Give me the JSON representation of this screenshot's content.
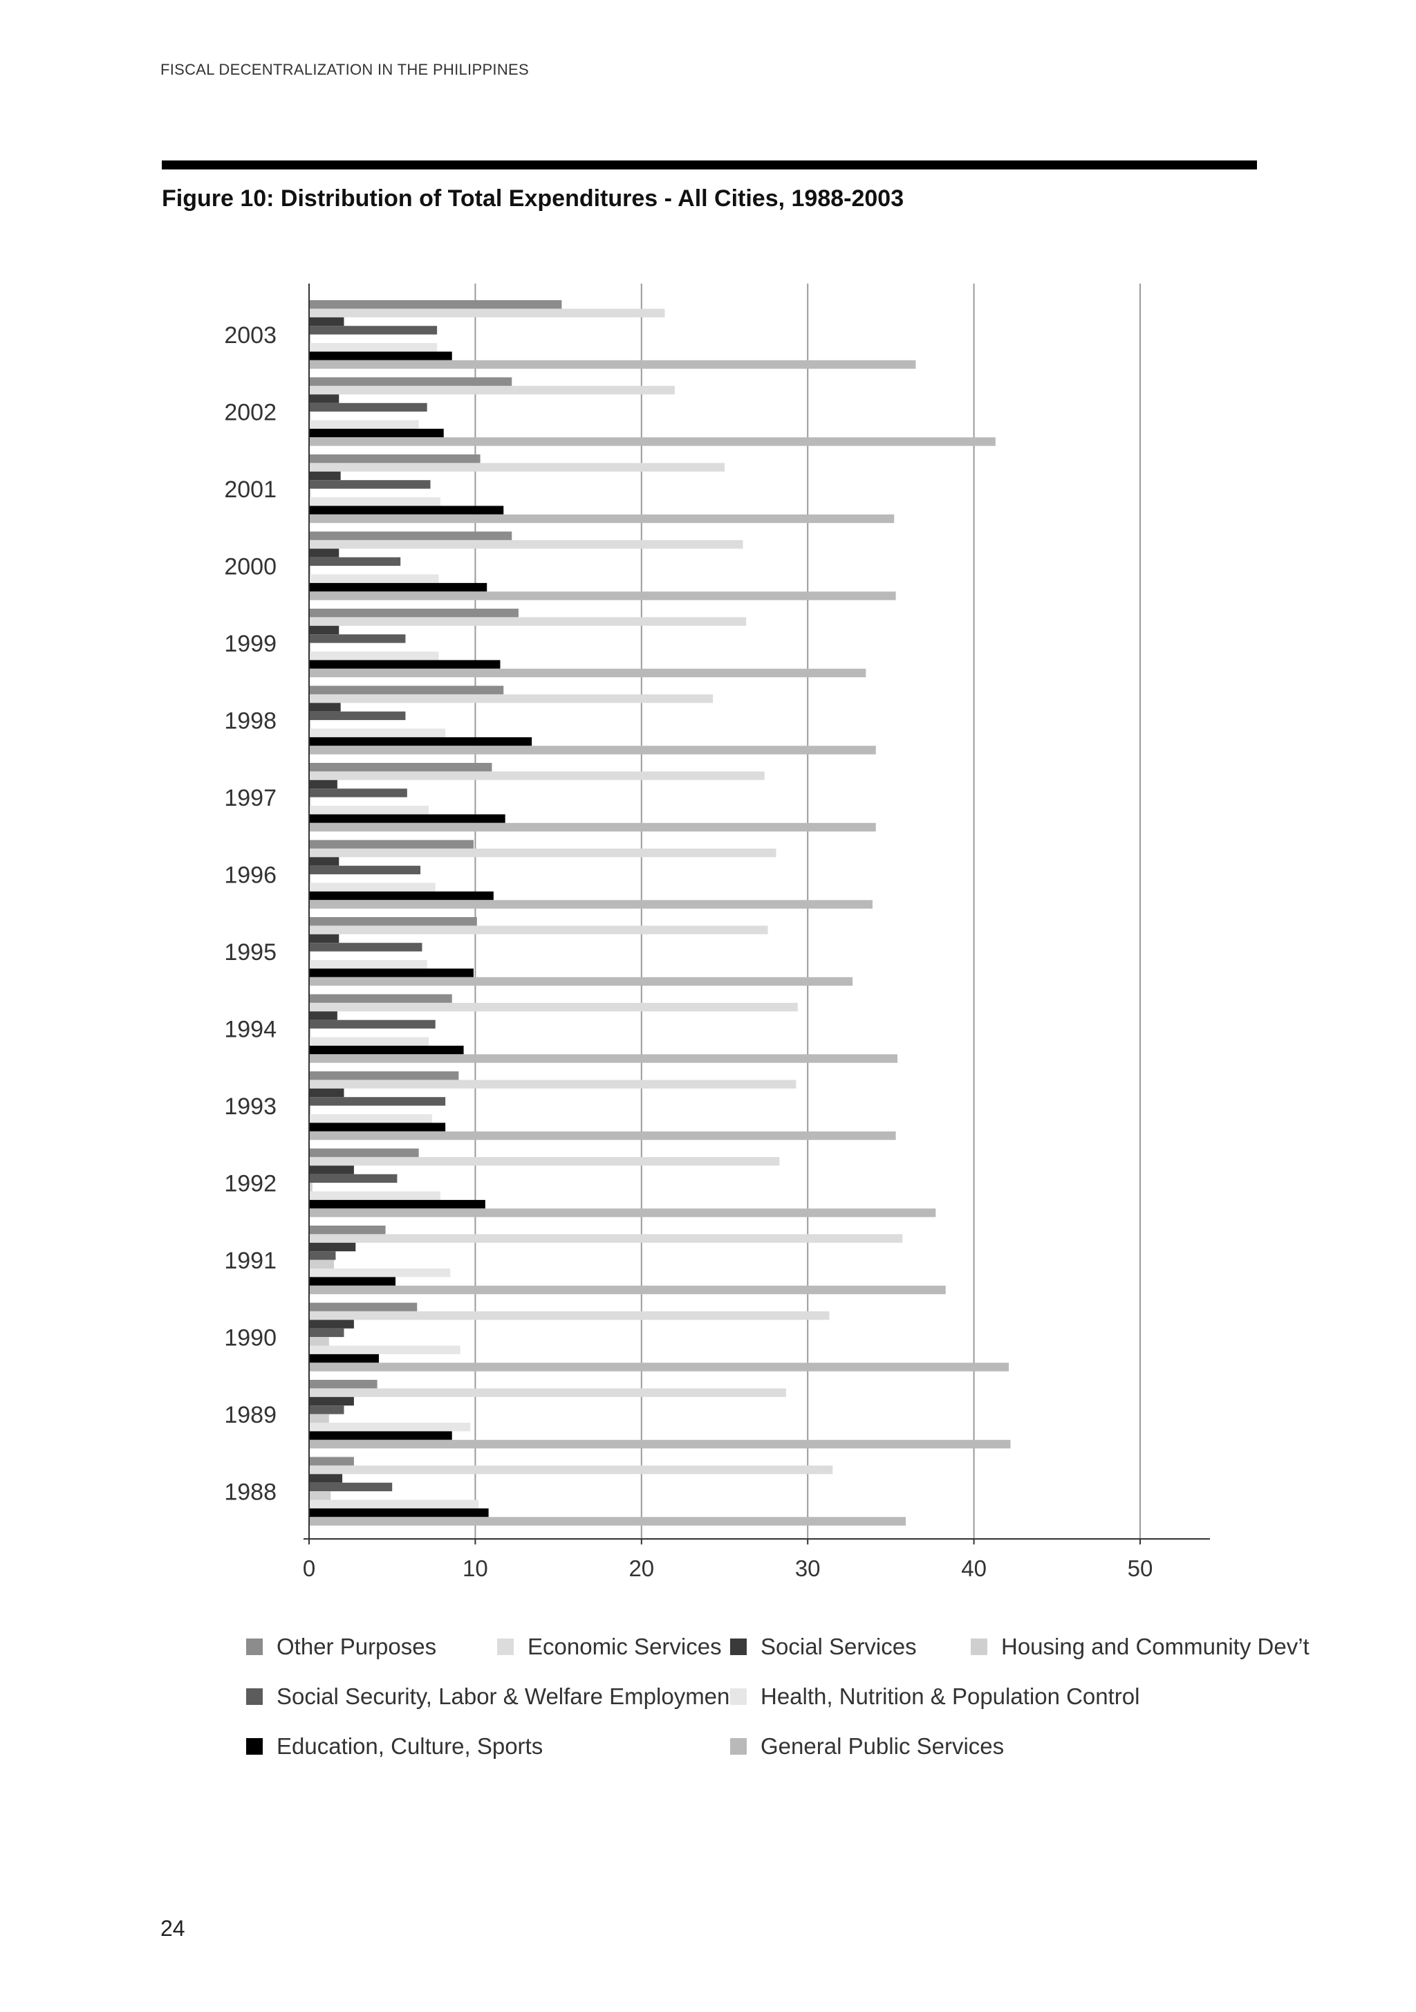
{
  "page": {
    "running_header": "FISCAL DECENTRALIZATION IN THE PHILIPPINES",
    "figure_title": "Figure 10: Distribution of Total Expenditures - All Cities, 1988-2003",
    "page_number": "24"
  },
  "colors": {
    "other_purposes": "#8c8c8c",
    "economic_services": "#dcdcdc",
    "social_services": "#3a3a3a",
    "housing_community": "#cfcfcf",
    "social_security": "#5c5c5c",
    "health_nutrition": "#e6e6e6",
    "education": "#000000",
    "general_public": "#b9b9b9",
    "gridline": "#9a9a9a",
    "axis": "#333333"
  },
  "chart_data": {
    "type": "bar",
    "orientation": "horizontal",
    "title": "Figure 10: Distribution of Total Expenditures - All Cities, 1988-2003",
    "xlabel": "",
    "ylabel": "",
    "xlim": [
      0,
      54
    ],
    "x_ticks": [
      "0",
      "10",
      "20",
      "30",
      "40",
      "50"
    ],
    "grid": "vertical",
    "legend_position": "bottom",
    "categories": [
      "2003",
      "2002",
      "2001",
      "2000",
      "1999",
      "1998",
      "1997",
      "1996",
      "1995",
      "1994",
      "1993",
      "1992",
      "1991",
      "1990",
      "1989",
      "1988"
    ],
    "series": [
      {
        "name": "Other Purposes",
        "color_key": "other_purposes",
        "values": [
          15.2,
          12.2,
          10.3,
          12.2,
          12.6,
          11.7,
          11.0,
          9.9,
          10.1,
          8.6,
          9.0,
          6.6,
          4.6,
          6.5,
          4.1,
          2.7
        ]
      },
      {
        "name": "Economic Services",
        "color_key": "economic_services",
        "values": [
          21.4,
          22.0,
          25.0,
          26.1,
          26.3,
          24.3,
          27.4,
          28.1,
          27.6,
          29.4,
          29.3,
          28.3,
          35.7,
          31.3,
          28.7,
          31.5
        ]
      },
      {
        "name": "Social Services",
        "color_key": "social_services",
        "values": [
          2.1,
          1.8,
          1.9,
          1.8,
          1.8,
          1.9,
          1.7,
          1.8,
          1.8,
          1.7,
          2.1,
          2.7,
          2.8,
          2.7,
          2.7,
          2.0
        ]
      },
      {
        "name": "Social Security, Labor & Welfare Employment",
        "color_key": "social_security",
        "values": [
          7.7,
          7.1,
          7.3,
          5.5,
          5.8,
          5.8,
          5.9,
          6.7,
          6.8,
          7.6,
          8.2,
          5.3,
          1.6,
          2.1,
          2.1,
          5.0
        ]
      },
      {
        "name": "Housing and Community Dev’t",
        "color_key": "housing_community",
        "values": [
          0.1,
          0.1,
          0.1,
          0.1,
          0.1,
          0.1,
          0.1,
          0.1,
          0.1,
          0.1,
          0.1,
          0.2,
          1.5,
          1.2,
          1.2,
          1.3
        ]
      },
      {
        "name": "Health, Nutrition & Population Control",
        "color_key": "health_nutrition",
        "values": [
          7.7,
          6.6,
          7.9,
          7.8,
          7.8,
          8.2,
          7.2,
          7.6,
          7.1,
          7.2,
          7.4,
          7.9,
          8.5,
          9.1,
          9.7,
          10.2
        ]
      },
      {
        "name": "Education, Culture, Sports",
        "color_key": "education",
        "values": [
          8.6,
          8.1,
          11.7,
          10.7,
          11.5,
          13.4,
          11.8,
          11.1,
          9.9,
          9.3,
          8.2,
          10.6,
          5.2,
          4.2,
          8.6,
          10.8
        ]
      },
      {
        "name": "General Public Services",
        "color_key": "general_public",
        "values": [
          36.5,
          41.3,
          35.2,
          35.3,
          33.5,
          34.1,
          34.1,
          33.9,
          32.7,
          35.4,
          35.3,
          37.7,
          38.3,
          42.1,
          42.2,
          35.9
        ]
      }
    ]
  },
  "legend": {
    "items": [
      {
        "label": "Other Purposes",
        "color_key": "other_purposes"
      },
      {
        "label": "Economic Services",
        "color_key": "economic_services"
      },
      {
        "label": "Social Services",
        "color_key": "social_services"
      },
      {
        "label": "Housing and Community Dev’t",
        "color_key": "housing_community"
      },
      {
        "label": "Social Security, Labor & Welfare Employment",
        "color_key": "social_security"
      },
      {
        "label": "Health, Nutrition & Population Control",
        "color_key": "health_nutrition"
      },
      {
        "label": "Education, Culture, Sports",
        "color_key": "education"
      },
      {
        "label": "General Public Services",
        "color_key": "general_public"
      }
    ]
  }
}
